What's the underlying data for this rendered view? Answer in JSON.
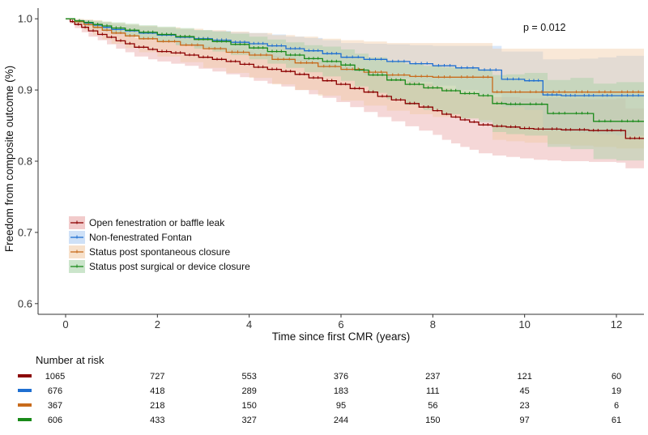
{
  "chart_data": {
    "type": "line",
    "subtype": "kaplan-meier",
    "xlabel": "Time since first CMR (years)",
    "ylabel": "Freedom from composite outcome (%)",
    "annotation": "p = 0.012",
    "xlim": [
      -0.6,
      12.6
    ],
    "ylim": [
      0.585,
      1.015
    ],
    "xticks": [
      0,
      2,
      4,
      6,
      8,
      10,
      12
    ],
    "yticks": [
      0.6,
      0.7,
      0.8,
      0.9,
      1.0
    ],
    "ytick_labels": [
      "0.6",
      "0.7",
      "0.8",
      "0.9",
      "1.0"
    ],
    "grid": false,
    "legend_position": "bottom-left",
    "series": [
      {
        "name": "Open fenestration or baffle leak",
        "color": "#8b0000",
        "fill": "#e8a0a0",
        "x": [
          0,
          0.1,
          0.2,
          0.35,
          0.5,
          0.7,
          0.9,
          1.1,
          1.3,
          1.5,
          1.8,
          2.0,
          2.3,
          2.6,
          2.9,
          3.2,
          3.5,
          3.8,
          4.1,
          4.4,
          4.7,
          5.0,
          5.3,
          5.6,
          5.9,
          6.2,
          6.5,
          6.8,
          7.1,
          7.4,
          7.7,
          8.0,
          8.2,
          8.4,
          8.6,
          8.8,
          9.0,
          9.3,
          9.6,
          9.9,
          10.2,
          10.5,
          10.8,
          11.1,
          11.4,
          11.7,
          12.0,
          12.2,
          12.6
        ],
        "y": [
          1.0,
          0.996,
          0.992,
          0.988,
          0.983,
          0.978,
          0.974,
          0.969,
          0.965,
          0.96,
          0.957,
          0.954,
          0.952,
          0.949,
          0.946,
          0.943,
          0.94,
          0.936,
          0.932,
          0.929,
          0.926,
          0.922,
          0.917,
          0.913,
          0.908,
          0.902,
          0.897,
          0.891,
          0.886,
          0.881,
          0.876,
          0.871,
          0.866,
          0.862,
          0.858,
          0.855,
          0.851,
          0.849,
          0.848,
          0.846,
          0.845,
          0.845,
          0.844,
          0.844,
          0.843,
          0.843,
          0.843,
          0.832,
          0.832
        ],
        "lower": [
          1.0,
          0.993,
          0.987,
          0.981,
          0.975,
          0.97,
          0.964,
          0.958,
          0.953,
          0.947,
          0.943,
          0.94,
          0.937,
          0.934,
          0.93,
          0.926,
          0.922,
          0.918,
          0.913,
          0.909,
          0.905,
          0.9,
          0.894,
          0.889,
          0.883,
          0.876,
          0.869,
          0.862,
          0.856,
          0.849,
          0.843,
          0.837,
          0.83,
          0.825,
          0.82,
          0.816,
          0.811,
          0.808,
          0.806,
          0.804,
          0.802,
          0.801,
          0.8,
          0.8,
          0.799,
          0.799,
          0.798,
          0.79,
          0.79
        ],
        "upper": [
          1.0,
          0.999,
          0.997,
          0.995,
          0.991,
          0.987,
          0.984,
          0.98,
          0.977,
          0.973,
          0.971,
          0.968,
          0.967,
          0.965,
          0.962,
          0.96,
          0.958,
          0.954,
          0.951,
          0.948,
          0.946,
          0.943,
          0.94,
          0.937,
          0.933,
          0.928,
          0.925,
          0.92,
          0.916,
          0.913,
          0.909,
          0.905,
          0.902,
          0.899,
          0.896,
          0.894,
          0.891,
          0.89,
          0.89,
          0.888,
          0.888,
          0.889,
          0.888,
          0.888,
          0.887,
          0.887,
          0.888,
          0.874,
          0.874
        ]
      },
      {
        "name": "Non-fenestrated Fontan",
        "color": "#1f6fd1",
        "fill": "#a8c8f0",
        "x": [
          0,
          0.2,
          0.4,
          0.6,
          0.8,
          1.0,
          1.3,
          1.6,
          2.0,
          2.4,
          2.8,
          3.2,
          3.6,
          4.0,
          4.4,
          4.8,
          5.2,
          5.6,
          6.0,
          6.5,
          7.0,
          7.5,
          8.0,
          8.5,
          9.0,
          9.5,
          10.0,
          10.4,
          10.8,
          11.2,
          11.6,
          12.0,
          12.6
        ],
        "y": [
          1.0,
          0.997,
          0.994,
          0.991,
          0.988,
          0.985,
          0.983,
          0.98,
          0.977,
          0.974,
          0.972,
          0.97,
          0.967,
          0.965,
          0.962,
          0.958,
          0.955,
          0.951,
          0.946,
          0.943,
          0.94,
          0.937,
          0.934,
          0.931,
          0.928,
          0.915,
          0.913,
          0.893,
          0.892,
          0.892,
          0.892,
          0.892,
          0.892
        ],
        "lower": [
          1.0,
          0.994,
          0.99,
          0.986,
          0.982,
          0.978,
          0.975,
          0.971,
          0.967,
          0.963,
          0.96,
          0.957,
          0.953,
          0.95,
          0.946,
          0.941,
          0.937,
          0.932,
          0.926,
          0.921,
          0.916,
          0.911,
          0.906,
          0.9,
          0.894,
          0.876,
          0.872,
          0.843,
          0.841,
          0.84,
          0.838,
          0.836,
          0.836
        ],
        "upper": [
          1.0,
          0.999,
          0.998,
          0.996,
          0.994,
          0.992,
          0.991,
          0.989,
          0.987,
          0.985,
          0.984,
          0.983,
          0.981,
          0.98,
          0.978,
          0.975,
          0.973,
          0.97,
          0.966,
          0.965,
          0.964,
          0.963,
          0.962,
          0.962,
          0.962,
          0.954,
          0.954,
          0.943,
          0.943,
          0.944,
          0.946,
          0.948,
          0.948
        ]
      },
      {
        "name": "Status post spontaneous closure",
        "color": "#c86b1c",
        "fill": "#f0c8a0",
        "x": [
          0,
          0.2,
          0.4,
          0.6,
          0.8,
          1.0,
          1.3,
          1.6,
          2.0,
          2.5,
          3.0,
          3.5,
          4.0,
          4.5,
          5.0,
          5.5,
          6.0,
          6.5,
          7.0,
          7.5,
          8.0,
          8.5,
          9.0,
          9.3,
          9.6,
          10.0,
          10.5,
          11.0,
          11.5,
          12.0,
          12.6
        ],
        "y": [
          1.0,
          0.996,
          0.992,
          0.988,
          0.984,
          0.98,
          0.976,
          0.972,
          0.968,
          0.963,
          0.958,
          0.953,
          0.949,
          0.943,
          0.938,
          0.933,
          0.929,
          0.925,
          0.921,
          0.919,
          0.918,
          0.918,
          0.918,
          0.897,
          0.897,
          0.897,
          0.897,
          0.897,
          0.897,
          0.897,
          0.897
        ],
        "lower": [
          1.0,
          0.991,
          0.984,
          0.977,
          0.971,
          0.965,
          0.959,
          0.953,
          0.947,
          0.939,
          0.931,
          0.924,
          0.917,
          0.908,
          0.9,
          0.892,
          0.885,
          0.878,
          0.871,
          0.866,
          0.862,
          0.86,
          0.858,
          0.83,
          0.828,
          0.826,
          0.824,
          0.822,
          0.82,
          0.818,
          0.818
        ],
        "upper": [
          1.0,
          1.0,
          0.999,
          0.998,
          0.996,
          0.994,
          0.992,
          0.99,
          0.988,
          0.986,
          0.984,
          0.982,
          0.98,
          0.977,
          0.975,
          0.972,
          0.97,
          0.968,
          0.966,
          0.966,
          0.966,
          0.966,
          0.966,
          0.958,
          0.958,
          0.958,
          0.958,
          0.958,
          0.958,
          0.958,
          0.958
        ]
      },
      {
        "name": "Status post surgical or device closure",
        "color": "#1a8a1a",
        "fill": "#a0d0a0",
        "x": [
          0,
          0.2,
          0.4,
          0.6,
          0.8,
          1.0,
          1.3,
          1.6,
          2.0,
          2.4,
          2.8,
          3.2,
          3.6,
          4.0,
          4.4,
          4.8,
          5.2,
          5.6,
          6.0,
          6.3,
          6.6,
          7.0,
          7.4,
          7.8,
          8.2,
          8.6,
          9.0,
          9.3,
          9.6,
          10.0,
          10.5,
          11.0,
          11.5,
          12.0,
          12.6
        ],
        "y": [
          1.0,
          0.997,
          0.995,
          0.992,
          0.99,
          0.987,
          0.984,
          0.981,
          0.978,
          0.975,
          0.971,
          0.968,
          0.964,
          0.959,
          0.954,
          0.949,
          0.944,
          0.94,
          0.935,
          0.928,
          0.921,
          0.914,
          0.908,
          0.903,
          0.899,
          0.895,
          0.892,
          0.881,
          0.88,
          0.88,
          0.867,
          0.867,
          0.856,
          0.856,
          0.856
        ],
        "lower": [
          1.0,
          0.994,
          0.99,
          0.986,
          0.983,
          0.979,
          0.975,
          0.971,
          0.967,
          0.963,
          0.958,
          0.954,
          0.949,
          0.943,
          0.937,
          0.931,
          0.925,
          0.919,
          0.913,
          0.905,
          0.896,
          0.887,
          0.879,
          0.872,
          0.866,
          0.86,
          0.855,
          0.841,
          0.838,
          0.836,
          0.82,
          0.817,
          0.803,
          0.801,
          0.801
        ],
        "upper": [
          1.0,
          0.999,
          0.998,
          0.997,
          0.996,
          0.995,
          0.993,
          0.991,
          0.989,
          0.987,
          0.984,
          0.982,
          0.979,
          0.975,
          0.971,
          0.967,
          0.963,
          0.961,
          0.957,
          0.951,
          0.946,
          0.941,
          0.937,
          0.934,
          0.932,
          0.93,
          0.929,
          0.921,
          0.922,
          0.924,
          0.914,
          0.917,
          0.909,
          0.911,
          0.911
        ]
      }
    ],
    "risk_table": {
      "title": "Number at risk",
      "times": [
        0,
        2,
        4,
        6,
        8,
        10,
        12
      ],
      "rows": [
        {
          "color": "#8b0000",
          "values": [
            "1065",
            "727",
            "553",
            "376",
            "237",
            "121",
            "60"
          ]
        },
        {
          "color": "#1f6fd1",
          "values": [
            "676",
            "418",
            "289",
            "183",
            "111",
            "45",
            "19"
          ]
        },
        {
          "color": "#c86b1c",
          "values": [
            "367",
            "218",
            "150",
            "95",
            "56",
            "23",
            "6"
          ]
        },
        {
          "color": "#1a8a1a",
          "values": [
            "606",
            "433",
            "327",
            "244",
            "150",
            "97",
            "61"
          ]
        }
      ]
    }
  }
}
